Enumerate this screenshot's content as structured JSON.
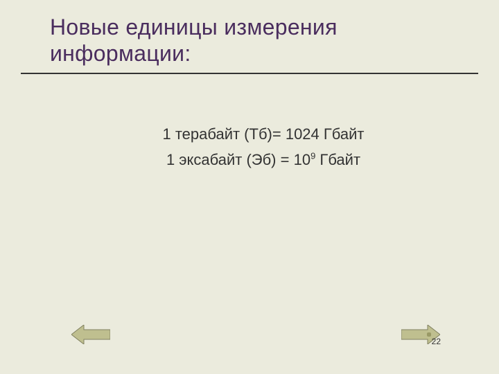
{
  "slide": {
    "title": "Новые единицы измерения\nинформации:",
    "number": "22",
    "background_color": "#ebebdd",
    "title_color": "#4a2d5e",
    "title_fontsize": 32,
    "divider_color": "#333333",
    "body_color": "#333333",
    "body_fontsize": 22
  },
  "content": {
    "line1": "1 терабайт  (Тб)= 1024 Гбайт",
    "line2_prefix": "1 эксабайт (Эб) = 10",
    "line2_exponent": "9",
    "line2_suffix": " Гбайт"
  },
  "nav": {
    "arrow_fill": "#bfbf8f",
    "arrow_stroke": "#808060",
    "arrow_width": 56,
    "arrow_height": 28
  }
}
